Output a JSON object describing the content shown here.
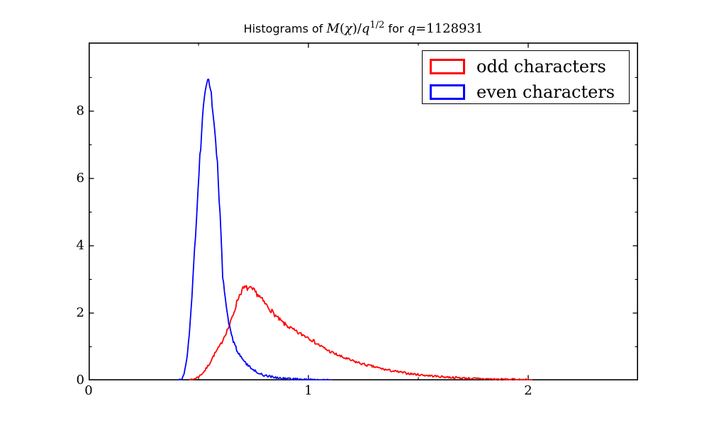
{
  "title": {
    "full": "Histograms of M(χ)/q^{1/2} for q=1128931",
    "parts": [
      {
        "t": "Histograms of ",
        "f": "sans"
      },
      {
        "t": "M",
        "f": "mi"
      },
      {
        "t": "(",
        "f": "mr"
      },
      {
        "t": "χ",
        "f": "mi"
      },
      {
        "t": ")/",
        "f": "mr"
      },
      {
        "t": "q",
        "f": "mi"
      },
      {
        "t": "1/2",
        "f": "sup"
      },
      {
        "t": " for ",
        "f": "sans"
      },
      {
        "t": "q",
        "f": "mi"
      },
      {
        "t": "=",
        "f": "mr"
      },
      {
        "t": "1128931",
        "f": "mr"
      }
    ]
  },
  "legend": {
    "position": "upper right",
    "entries": [
      {
        "label": "odd characters",
        "color": "#ff0000"
      },
      {
        "label": "even characters",
        "color": "#0000ff"
      }
    ]
  },
  "axes": {
    "x": {
      "range": [
        0,
        2.5
      ],
      "major": [
        0,
        1,
        2
      ],
      "minor": [
        0.5,
        1.5
      ],
      "labels": [
        "0",
        "1",
        "2"
      ]
    },
    "y": {
      "range": [
        0,
        10.04
      ],
      "major": [
        0,
        2,
        4,
        6,
        8
      ],
      "minor": [
        1,
        3,
        5,
        7,
        9
      ],
      "labels": [
        "0",
        "2",
        "4",
        "6",
        "8"
      ]
    }
  },
  "chart_data": {
    "type": "line",
    "subtype": "histogram-outline",
    "title": "Histograms of M(χ)/q^{1/2} for q=1128931",
    "xlabel": "",
    "ylabel": "",
    "xlim": [
      0,
      2.5
    ],
    "ylim": [
      0,
      10.04
    ],
    "grid": false,
    "noise": {
      "seed": 7,
      "dx": 0.004,
      "amp_base": 0.028,
      "amp_scale": 0.021
    },
    "series": [
      {
        "name": "odd characters",
        "color": "#ff0000",
        "peak": {
          "x": 0.71,
          "y": 2.75
        },
        "points": [
          [
            0.458,
            0
          ],
          [
            0.47,
            0.02
          ],
          [
            0.49,
            0.07
          ],
          [
            0.51,
            0.16
          ],
          [
            0.53,
            0.3
          ],
          [
            0.55,
            0.5
          ],
          [
            0.57,
            0.75
          ],
          [
            0.59,
            0.95
          ],
          [
            0.6,
            1.05
          ],
          [
            0.62,
            1.35
          ],
          [
            0.64,
            1.62
          ],
          [
            0.66,
            2.0
          ],
          [
            0.68,
            2.45
          ],
          [
            0.7,
            2.7
          ],
          [
            0.71,
            2.75
          ],
          [
            0.73,
            2.73
          ],
          [
            0.75,
            2.67
          ],
          [
            0.77,
            2.55
          ],
          [
            0.8,
            2.3
          ],
          [
            0.83,
            2.08
          ],
          [
            0.86,
            1.85
          ],
          [
            0.89,
            1.68
          ],
          [
            0.92,
            1.55
          ],
          [
            0.95,
            1.42
          ],
          [
            1.0,
            1.28
          ],
          [
            1.03,
            1.13
          ],
          [
            1.06,
            1.0
          ],
          [
            1.1,
            0.85
          ],
          [
            1.15,
            0.7
          ],
          [
            1.2,
            0.58
          ],
          [
            1.25,
            0.48
          ],
          [
            1.3,
            0.4
          ],
          [
            1.35,
            0.32
          ],
          [
            1.4,
            0.26
          ],
          [
            1.45,
            0.21
          ],
          [
            1.5,
            0.17
          ],
          [
            1.55,
            0.14
          ],
          [
            1.6,
            0.11
          ],
          [
            1.65,
            0.09
          ],
          [
            1.7,
            0.07
          ],
          [
            1.75,
            0.055
          ],
          [
            1.8,
            0.045
          ],
          [
            1.85,
            0.035
          ],
          [
            1.9,
            0.03
          ],
          [
            1.95,
            0.025
          ],
          [
            2.0,
            0.02
          ],
          [
            2.02,
            0
          ]
        ]
      },
      {
        "name": "even characters",
        "color": "#0000ff",
        "peak": {
          "x": 0.545,
          "y": 9.0
        },
        "points": [
          [
            0.41,
            0
          ],
          [
            0.42,
            0.03
          ],
          [
            0.43,
            0.12
          ],
          [
            0.44,
            0.35
          ],
          [
            0.45,
            0.8
          ],
          [
            0.46,
            1.5
          ],
          [
            0.47,
            2.5
          ],
          [
            0.48,
            3.6
          ],
          [
            0.49,
            4.8
          ],
          [
            0.5,
            5.9
          ],
          [
            0.51,
            7.0
          ],
          [
            0.52,
            7.9
          ],
          [
            0.53,
            8.5
          ],
          [
            0.538,
            8.8
          ],
          [
            0.545,
            9.0
          ],
          [
            0.552,
            8.7
          ],
          [
            0.56,
            8.3
          ],
          [
            0.57,
            7.6
          ],
          [
            0.58,
            6.9
          ],
          [
            0.59,
            6.0
          ],
          [
            0.6,
            4.6
          ],
          [
            0.61,
            3.1
          ],
          [
            0.62,
            2.5
          ],
          [
            0.63,
            2.0
          ],
          [
            0.64,
            1.62
          ],
          [
            0.65,
            1.35
          ],
          [
            0.66,
            1.12
          ],
          [
            0.68,
            0.82
          ],
          [
            0.7,
            0.62
          ],
          [
            0.72,
            0.47
          ],
          [
            0.74,
            0.35
          ],
          [
            0.76,
            0.27
          ],
          [
            0.78,
            0.2
          ],
          [
            0.8,
            0.15
          ],
          [
            0.83,
            0.11
          ],
          [
            0.86,
            0.08
          ],
          [
            0.9,
            0.055
          ],
          [
            0.95,
            0.035
          ],
          [
            1.0,
            0.022
          ],
          [
            1.05,
            0.014
          ],
          [
            1.1,
            0.01
          ],
          [
            1.112,
            0
          ]
        ]
      }
    ]
  }
}
